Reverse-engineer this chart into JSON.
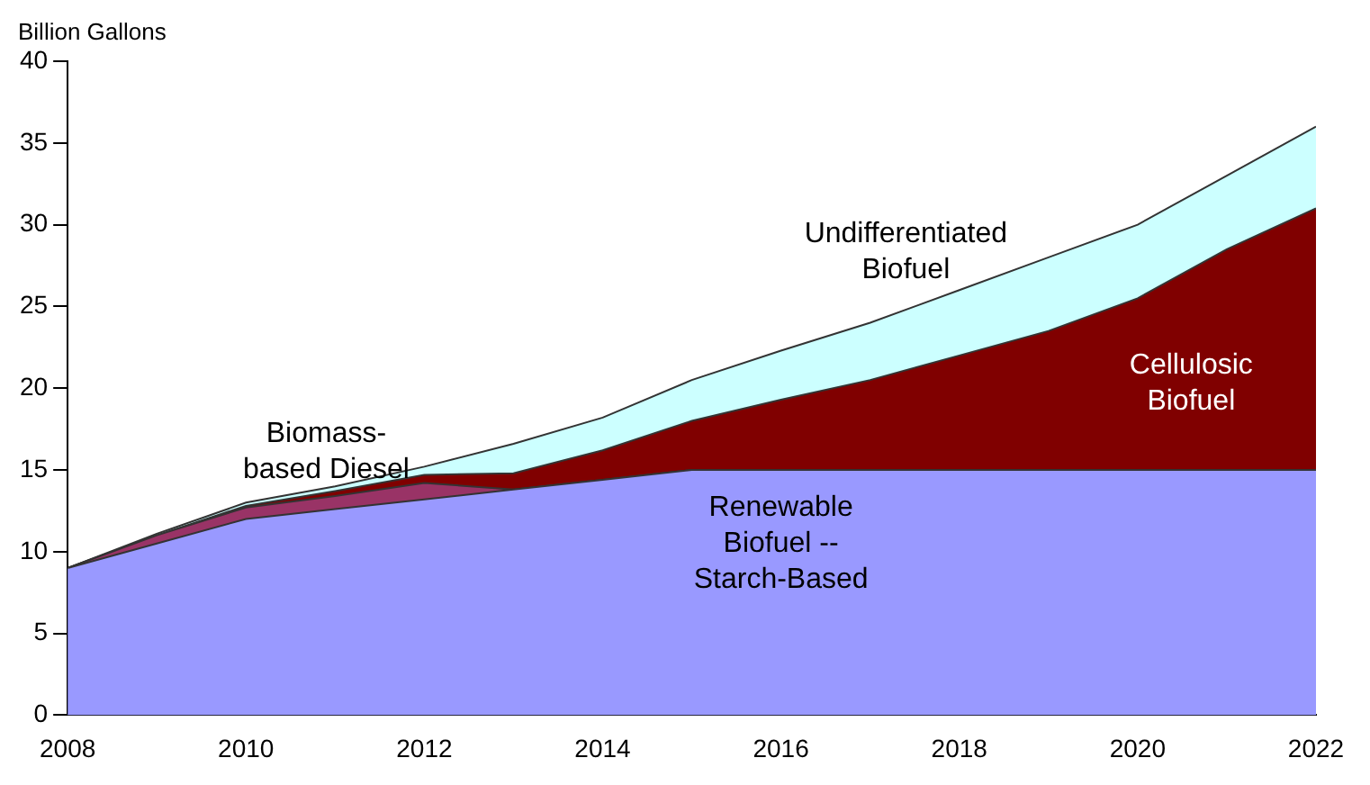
{
  "chart_data": {
    "type": "area",
    "stacked": true,
    "ylabel": "Billion Gallons",
    "x": [
      2008,
      2009,
      2010,
      2011,
      2012,
      2013,
      2014,
      2015,
      2016,
      2017,
      2018,
      2019,
      2020,
      2021,
      2022
    ],
    "xlim": [
      2008,
      2022
    ],
    "xticks": [
      2008,
      2010,
      2012,
      2014,
      2016,
      2018,
      2020,
      2022
    ],
    "ylim": [
      0,
      40
    ],
    "yticks": [
      0,
      5,
      10,
      15,
      20,
      25,
      30,
      35,
      40
    ],
    "grid": false,
    "legend": false,
    "series": [
      {
        "name": "Renewable Biofuel -- Starch-Based",
        "color": "#9999ff",
        "values": [
          9,
          10.5,
          12,
          12.6,
          13.2,
          13.8,
          14.4,
          15,
          15,
          15,
          15,
          15,
          15,
          15,
          15
        ]
      },
      {
        "name": "Biomass-based Diesel",
        "color": "#993366",
        "values": [
          0,
          0.5,
          0.7,
          0.8,
          1,
          0,
          0,
          0,
          0,
          0,
          0,
          0,
          0,
          0,
          0
        ]
      },
      {
        "name": "Cellulosic Biofuel",
        "color": "#800000",
        "values": [
          0,
          0,
          0.1,
          0.3,
          0.5,
          1,
          1.8,
          3,
          4.3,
          5.5,
          7,
          8.5,
          10.5,
          13.5,
          16
        ]
      },
      {
        "name": "Undifferentiated Biofuel",
        "color": "#ccffff",
        "values": [
          0,
          0.1,
          0.2,
          0.3,
          0.5,
          1.8,
          2,
          2.5,
          3,
          3.5,
          4,
          4.5,
          4.5,
          4.5,
          5
        ]
      }
    ]
  }
}
